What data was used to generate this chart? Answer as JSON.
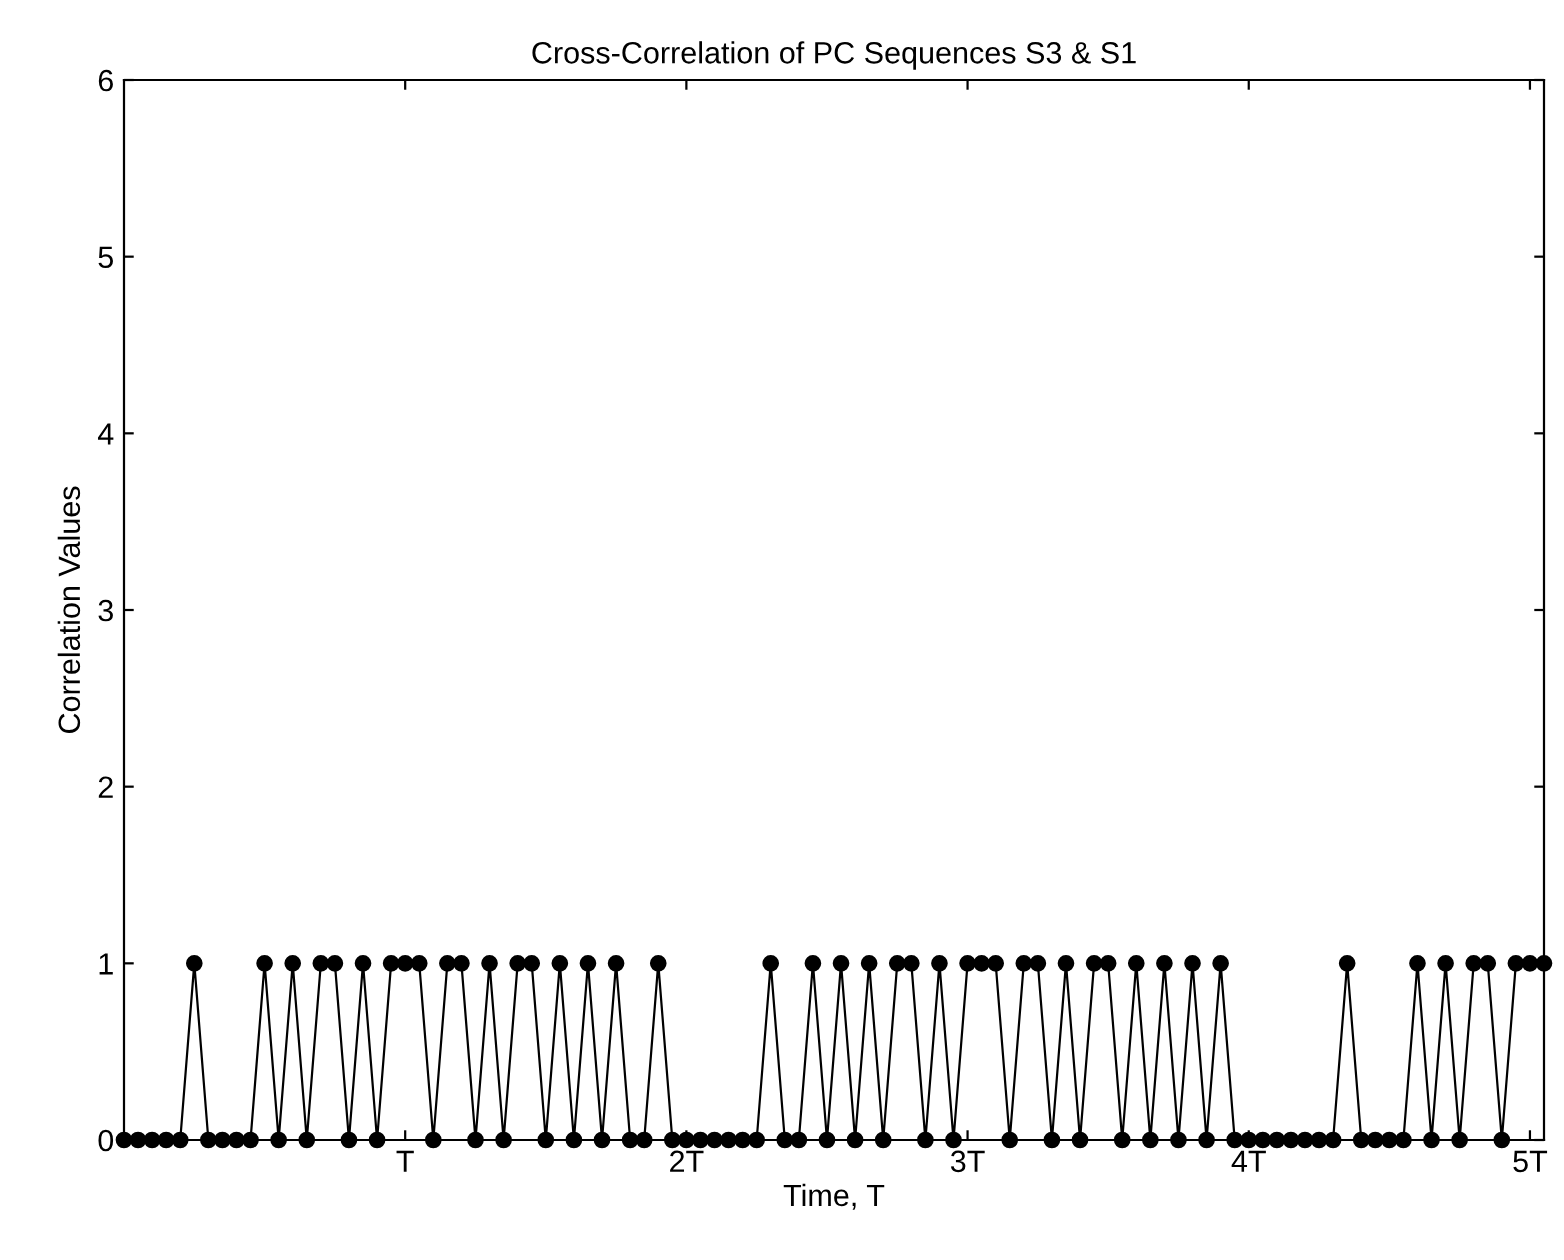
{
  "chart_data": {
    "type": "line",
    "title": "Cross-Correlation of PC Sequences S3 & S1",
    "xlabel": "Time, T",
    "ylabel": "Correlation Values",
    "x": [
      0,
      0.05,
      0.1,
      0.15,
      0.2,
      0.25,
      0.3,
      0.35,
      0.4,
      0.45,
      0.5,
      0.55,
      0.6,
      0.65,
      0.7,
      0.75,
      0.8,
      0.85,
      0.9,
      0.95,
      1,
      1.05,
      1.1,
      1.15,
      1.2,
      1.25,
      1.3,
      1.35,
      1.4,
      1.45,
      1.5,
      1.55,
      1.6,
      1.65,
      1.7,
      1.75,
      1.8,
      1.85,
      1.9,
      1.95,
      2,
      2.05,
      2.1,
      2.15,
      2.2,
      2.25,
      2.3,
      2.35,
      2.4,
      2.45,
      2.5,
      2.55,
      2.6,
      2.65,
      2.7,
      2.75,
      2.8,
      2.85,
      2.9,
      2.95,
      3,
      3.05,
      3.1,
      3.15,
      3.2,
      3.25,
      3.3,
      3.35,
      3.4,
      3.45,
      3.5,
      3.55,
      3.6,
      3.65,
      3.7,
      3.75,
      3.8,
      3.85,
      3.9,
      3.95,
      4,
      4.05,
      4.1,
      4.15,
      4.2,
      4.25,
      4.3,
      4.35,
      4.4,
      4.45,
      4.5,
      4.55,
      4.6,
      4.65,
      4.7,
      4.75,
      4.8,
      4.85,
      4.9,
      4.95,
      5,
      5.05
    ],
    "series": [
      {
        "color": "#000000",
        "values": [
          0,
          0,
          0,
          0,
          0,
          1,
          0,
          0,
          0,
          0,
          1,
          0,
          1,
          0,
          1,
          1,
          0,
          1,
          0,
          1,
          1,
          1,
          0,
          1,
          1,
          0,
          1,
          0,
          1,
          1,
          0,
          1,
          0,
          1,
          0,
          1,
          0,
          0,
          1,
          0,
          0,
          0,
          0,
          0,
          0,
          0,
          1,
          0,
          0,
          1,
          0,
          1,
          0,
          1,
          0,
          1,
          1,
          0,
          1,
          0,
          1,
          1,
          1,
          0,
          1,
          1,
          0,
          1,
          0,
          1,
          1,
          0,
          1,
          0,
          1,
          0,
          1,
          0,
          1,
          0,
          0,
          0,
          0,
          0,
          0,
          0,
          0,
          1,
          0,
          0,
          0,
          0,
          1,
          0,
          1,
          0,
          1,
          1,
          0,
          1,
          1,
          1
        ]
      }
    ],
    "xlim": [
      0,
      5.05
    ],
    "xticks": [
      {
        "value": 1,
        "label": "T"
      },
      {
        "value": 2,
        "label": "2T"
      },
      {
        "value": 3,
        "label": "3T"
      },
      {
        "value": 4,
        "label": "4T"
      },
      {
        "value": 5,
        "label": "5T"
      }
    ],
    "ylim": [
      0,
      6
    ],
    "yticks": [
      0,
      1,
      2,
      3,
      4,
      5,
      6
    ],
    "marker": "circle",
    "line_style": "solid",
    "grid": false,
    "legend": false
  }
}
